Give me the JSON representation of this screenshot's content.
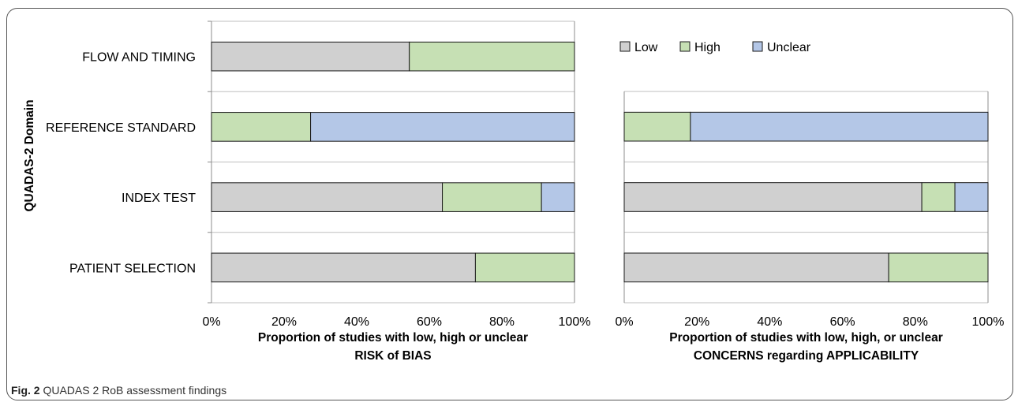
{
  "chart_data": [
    {
      "type": "bar",
      "orientation": "horizontal",
      "stacked": true,
      "categories": [
        "PATIENT SELECTION",
        "INDEX TEST",
        "REFERENCE STANDARD",
        "FLOW AND TIMING"
      ],
      "series": [
        {
          "name": "Low",
          "values": [
            72.7,
            63.6,
            0,
            54.5
          ]
        },
        {
          "name": "High",
          "values": [
            27.3,
            27.3,
            27.3,
            45.5
          ]
        },
        {
          "name": "Unclear",
          "values": [
            0,
            9.1,
            72.7,
            0
          ]
        }
      ],
      "ylabel": "QUADAS-2 Domain",
      "xlabel": "Proportion of studies with low, high or unclear",
      "xlabel_line2": "RISK of BIAS",
      "xlim": [
        0,
        100
      ],
      "xticks": [
        "0%",
        "20%",
        "40%",
        "60%",
        "80%",
        "100%"
      ],
      "grid": true
    },
    {
      "type": "bar",
      "orientation": "horizontal",
      "stacked": true,
      "categories": [
        "PATIENT SELECTION",
        "INDEX TEST",
        "REFERENCE STANDARD"
      ],
      "series": [
        {
          "name": "Low",
          "values": [
            72.7,
            81.8,
            0
          ]
        },
        {
          "name": "High",
          "values": [
            27.3,
            9.1,
            18.2
          ]
        },
        {
          "name": "Unclear",
          "values": [
            0,
            9.1,
            81.8
          ]
        }
      ],
      "xlabel": "Proportion of studies with low, high, or unclear",
      "xlabel_line2": "CONCERNS regarding APPLICABILITY",
      "xlim": [
        0,
        100
      ],
      "xticks": [
        "0%",
        "20%",
        "40%",
        "60%",
        "80%",
        "100%"
      ],
      "grid": true
    }
  ],
  "legend": {
    "position": "top-right",
    "items": [
      "Low",
      "High",
      "Unclear"
    ]
  },
  "colors": {
    "Low": "#d0d0d0",
    "High": "#c6e0b4",
    "Unclear": "#b4c7e7",
    "outline": "#1a1a1a",
    "grid": "#bfbfbf",
    "axis": "#8c8c8c"
  },
  "caption": {
    "label": "Fig. 2",
    "text": "QUADAS 2 RoB assessment findings"
  }
}
